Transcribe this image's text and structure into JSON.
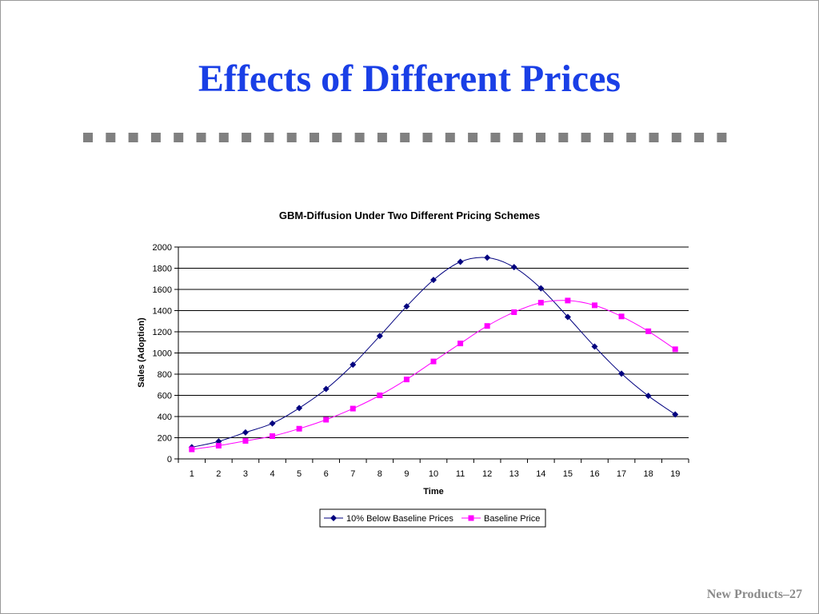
{
  "slide": {
    "title": "Effects of Different Prices",
    "footer": "New Products–27"
  },
  "colors": {
    "title": "#1a3fe6",
    "divider": "#808080",
    "series_below": "#00007f",
    "series_baseline": "#ff00ff"
  },
  "chart_data": {
    "type": "line",
    "title": "GBM-Diffusion Under Two Different Pricing Schemes",
    "xlabel": "Time",
    "ylabel": "Sales (Adoption)",
    "ylim": [
      0,
      2000
    ],
    "yticks": [
      0,
      200,
      400,
      600,
      800,
      1000,
      1200,
      1400,
      1600,
      1800,
      2000
    ],
    "grid": "horizontal",
    "legend_position": "bottom",
    "categories": [
      "1",
      "2",
      "3",
      "4",
      "5",
      "6",
      "7",
      "8",
      "9",
      "10",
      "11",
      "12",
      "13",
      "14",
      "15",
      "16",
      "17",
      "18",
      "19"
    ],
    "series": [
      {
        "name": "10% Below Baseline Prices",
        "marker": "diamond",
        "color": "#00007f",
        "values": [
          110,
          165,
          250,
          335,
          480,
          660,
          890,
          1160,
          1440,
          1690,
          1860,
          1900,
          1810,
          1610,
          1340,
          1060,
          805,
          595,
          420
        ]
      },
      {
        "name": "Baseline Price",
        "marker": "square",
        "color": "#ff00ff",
        "values": [
          90,
          125,
          170,
          215,
          285,
          370,
          475,
          600,
          750,
          920,
          1090,
          1255,
          1385,
          1475,
          1495,
          1450,
          1345,
          1205,
          1035
        ]
      }
    ]
  }
}
